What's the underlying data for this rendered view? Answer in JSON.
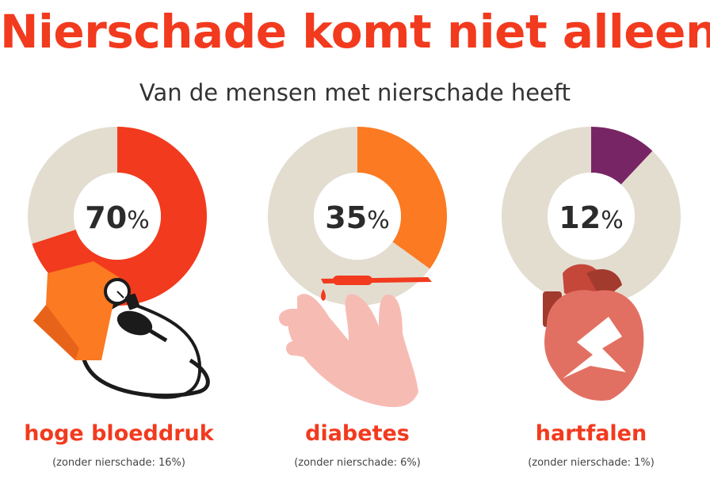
{
  "title": "Nierschade komt niet alleen",
  "subtitle": "Van de mensen met nierschade heeft",
  "colors": {
    "title": "#f23a1e",
    "track": "#e3ddd0",
    "hoge_bloeddruk": "#f23a1e",
    "diabetes": "#fb7a22",
    "hartfalen": "#782565"
  },
  "chart_data": {
    "type": "pie",
    "title": "Nierschade komt niet alleen",
    "subtitle": "Van de mensen met nierschade heeft",
    "series": [
      {
        "name": "hoge bloeddruk",
        "value": 70,
        "display": "70",
        "note": "(zonder nierschade: 16%)",
        "color": "#f23a1e",
        "icon": "blood-pressure-monitor-icon"
      },
      {
        "name": "diabetes",
        "value": 35,
        "display": "35",
        "note": "(zonder nierschade: 6%)",
        "color": "#fb7a22",
        "icon": "hand-lancet-icon"
      },
      {
        "name": "hartfalen",
        "value": 12,
        "display": "12",
        "note": "(zonder nierschade: 1%)",
        "color": "#782565",
        "icon": "broken-heart-icon"
      }
    ],
    "unit": "%"
  }
}
